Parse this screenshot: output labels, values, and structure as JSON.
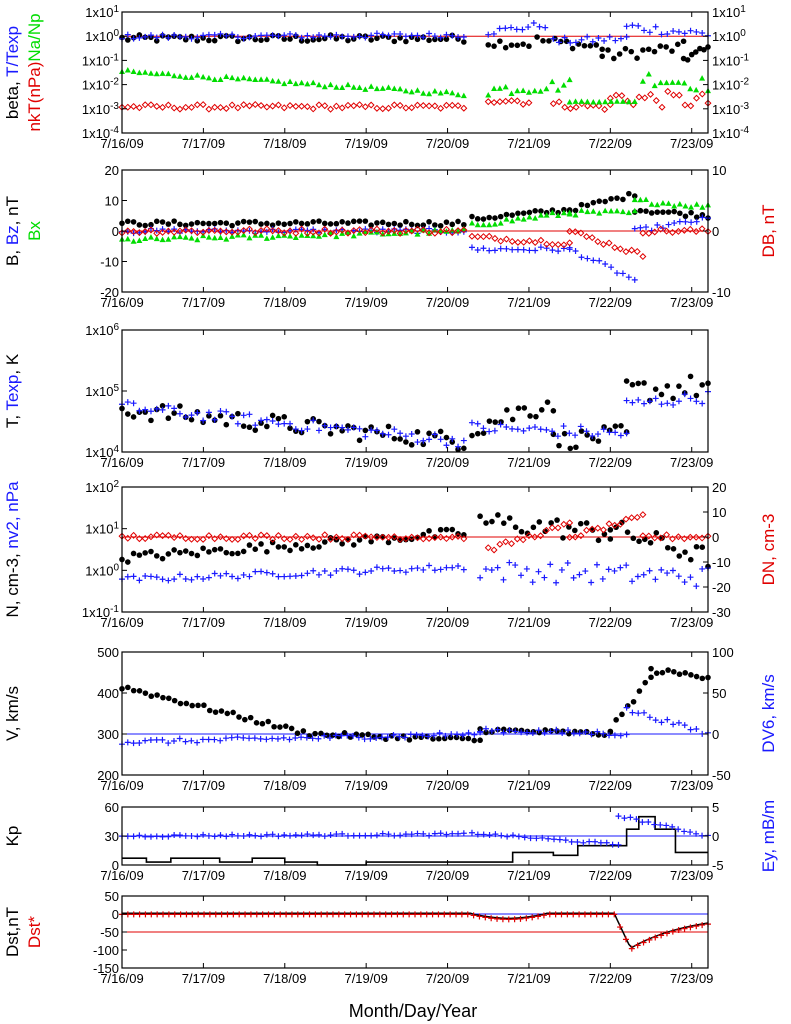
{
  "colors": {
    "black": "#000000",
    "blue": "#1a1aff",
    "red": "#e00000",
    "green": "#00dd00"
  },
  "x_ticks": [
    "7/16/09",
    "7/17/09",
    "7/18/09",
    "7/19/09",
    "7/20/09",
    "7/21/09",
    "7/22/09",
    "7/23/09"
  ],
  "x_title": "Month/Day/Year",
  "chart_data": [
    {
      "type": "scatter",
      "panel": "beta",
      "y_scale": "log",
      "ylim": [
        0.0001,
        10
      ],
      "left_ticks": [
        "1x10-4",
        "1x10-3",
        "1x10-2",
        "1x10-1",
        "1x100",
        "1x101"
      ],
      "right_ticks": [
        "1x10-4",
        "1x10-3",
        "1x10-2",
        "1x10-1",
        "1x100",
        "1x101"
      ],
      "labels": [
        {
          "text": "beta, ",
          "color": "#000000"
        },
        {
          "text": "T/Texp",
          "color": "#1a1aff"
        },
        {
          "text": "nkT(nPa)",
          "color": "#e00000"
        },
        {
          "text": "Na/Np",
          "color": "#00dd00"
        }
      ],
      "reference_line": 1,
      "series": [
        {
          "color": "#000000",
          "marker": "dot",
          "segments": [
            {
              "x": [
                0,
                4.2
              ],
              "y": [
                0.8,
                0.8
              ],
              "noise": 0.15
            },
            {
              "x": [
                4.5,
                5.0
              ],
              "y": [
                0.55,
                0.5
              ],
              "noise": 0.2
            },
            {
              "x": [
                5.1,
                5.9
              ],
              "y": [
                0.7,
                0.35
              ],
              "noise": 0.2
            },
            {
              "x": [
                5.9,
                6.9
              ],
              "y": [
                0.15,
                0.35
              ],
              "noise": 0.25
            },
            {
              "x": [
                6.9,
                7.2
              ],
              "y": [
                0.12,
                0.3
              ],
              "noise": 0.2
            }
          ]
        },
        {
          "color": "#1a1aff",
          "marker": "plus",
          "segments": [
            {
              "x": [
                0,
                4.2
              ],
              "y": [
                0.95,
                1.1
              ],
              "noise": 0.1
            },
            {
              "x": [
                4.5,
                5.2
              ],
              "y": [
                1.5,
                3.0
              ],
              "noise": 0.15
            },
            {
              "x": [
                5.3,
                6.2
              ],
              "y": [
                0.6,
                0.8
              ],
              "noise": 0.15
            },
            {
              "x": [
                6.2,
                7.2
              ],
              "y": [
                2.5,
                1.2
              ],
              "noise": 0.2
            }
          ]
        },
        {
          "color": "#e00000",
          "marker": "diamond",
          "segments": [
            {
              "x": [
                0,
                4.2
              ],
              "y": [
                0.0012,
                0.0012
              ],
              "noise": 0.1
            },
            {
              "x": [
                4.5,
                5.0
              ],
              "y": [
                0.0025,
                0.002
              ],
              "noise": 0.15
            },
            {
              "x": [
                5.3,
                6.0
              ],
              "y": [
                0.0015,
                0.0012
              ],
              "noise": 0.15
            },
            {
              "x": [
                6.0,
                7.2
              ],
              "y": [
                0.003,
                0.002
              ],
              "noise": 0.35
            }
          ]
        },
        {
          "color": "#00dd00",
          "marker": "triangle",
          "segments": [
            {
              "x": [
                0,
                4.2
              ],
              "y": [
                0.035,
                0.004
              ],
              "noise": 0.08
            },
            {
              "x": [
                4.5,
                5.5
              ],
              "y": [
                0.006,
                0.01
              ],
              "noise": 0.25
            },
            {
              "x": [
                5.5,
                6.3
              ],
              "y": [
                0.002,
                0.002
              ],
              "noise": 0.02
            },
            {
              "x": [
                6.4,
                7.2
              ],
              "y": [
                0.02,
                0.01
              ],
              "noise": 0.3
            }
          ]
        }
      ]
    },
    {
      "type": "scatter",
      "panel": "B",
      "y_scale": "linear",
      "ylim": [
        -20,
        20
      ],
      "y2lim": [
        -10,
        10
      ],
      "left_ticks": [
        "-20",
        "-10",
        "0",
        "10",
        "20"
      ],
      "right_ticks": [
        "-10",
        "0",
        "10"
      ],
      "labels": [
        {
          "text": "B, ",
          "color": "#000000"
        },
        {
          "text": "Bz",
          "color": "#1a1aff"
        },
        {
          "text": ", nT",
          "color": "#000000"
        },
        {
          "text": "Bx",
          "color": "#00dd00"
        },
        {
          "text": "DB, nT",
          "color": "#e00000"
        }
      ],
      "reference_line": 0,
      "series": [
        {
          "color": "#000000",
          "marker": "dot",
          "segments": [
            {
              "x": [
                0,
                4.2
              ],
              "y": [
                2.5,
                2.5
              ],
              "noise": 0.15
            },
            {
              "x": [
                4.3,
                5.5
              ],
              "y": [
                4,
                7
              ],
              "noise": 0.1
            },
            {
              "x": [
                5.5,
                6.3
              ],
              "y": [
                7,
                12
              ],
              "noise": 0.15
            },
            {
              "x": [
                6.3,
                7.2
              ],
              "y": [
                7,
                5
              ],
              "noise": 0.1
            }
          ]
        },
        {
          "color": "#1a1aff",
          "marker": "plus",
          "segments": [
            {
              "x": [
                0,
                4.2
              ],
              "y": [
                0,
                0
              ],
              "noise": 0
            },
            {
              "x": [
                4.3,
                5.5
              ],
              "y": [
                -3,
                -3
              ],
              "noise": 0
            },
            {
              "x": [
                5.5,
                6.3
              ],
              "y": [
                -3,
                -8
              ],
              "noise": 0
            },
            {
              "x": [
                6.3,
                7.2
              ],
              "y": [
                0,
                2
              ],
              "noise": 0
            }
          ]
        },
        {
          "color": "#00dd00",
          "marker": "triangle",
          "segments": [
            {
              "x": [
                0,
                4.2
              ],
              "y": [
                -1.5,
                0
              ],
              "noise": 0
            },
            {
              "x": [
                4.3,
                5.5
              ],
              "y": [
                1,
                3
              ],
              "noise": 0
            },
            {
              "x": [
                5.5,
                6.3
              ],
              "y": [
                3,
                3
              ],
              "noise": 0
            },
            {
              "x": [
                6.3,
                7.2
              ],
              "y": [
                5,
                4
              ],
              "noise": 0
            }
          ]
        },
        {
          "color": "#e00000",
          "marker": "diamond",
          "segments": [
            {
              "x": [
                0,
                4.2
              ],
              "y": [
                0,
                0
              ],
              "noise": 0
            },
            {
              "x": [
                4.3,
                5.5
              ],
              "y": [
                -1,
                -2
              ],
              "noise": 0
            },
            {
              "x": [
                5.5,
                6.4
              ],
              "y": [
                0,
                -4
              ],
              "noise": 0
            },
            {
              "x": [
                6.4,
                7.2
              ],
              "y": [
                0,
                0
              ],
              "noise": 0
            }
          ]
        }
      ]
    },
    {
      "type": "scatter",
      "panel": "T",
      "y_scale": "log",
      "ylim": [
        10000,
        1000000
      ],
      "left_ticks": [
        "1x104",
        "1x105",
        "1x106"
      ],
      "labels": [
        {
          "text": "T, ",
          "color": "#000000"
        },
        {
          "text": "Texp",
          "color": "#1a1aff"
        },
        {
          "text": ", K",
          "color": "#000000"
        }
      ],
      "series": [
        {
          "color": "#000000",
          "marker": "dot",
          "segments": [
            {
              "x": [
                0,
                4.2
              ],
              "y": [
                50000,
                15000
              ],
              "noise": 0.15
            },
            {
              "x": [
                4.3,
                5.3
              ],
              "y": [
                25000,
                70000
              ],
              "noise": 0.2
            },
            {
              "x": [
                5.3,
                6.2
              ],
              "y": [
                15000,
                20000
              ],
              "noise": 0.15
            },
            {
              "x": [
                6.2,
                7.2
              ],
              "y": [
                100000,
                120000
              ],
              "noise": 0.2
            }
          ]
        },
        {
          "color": "#1a1aff",
          "marker": "plus",
          "segments": [
            {
              "x": [
                0,
                4.2
              ],
              "y": [
                55000,
                15000
              ],
              "noise": 0.1
            },
            {
              "x": [
                4.3,
                6.2
              ],
              "y": [
                25000,
                20000
              ],
              "noise": 0.1
            },
            {
              "x": [
                6.2,
                7.2
              ],
              "y": [
                60000,
                80000
              ],
              "noise": 0.1
            }
          ]
        }
      ]
    },
    {
      "type": "scatter",
      "panel": "N",
      "y_scale": "log",
      "ylim": [
        0.1,
        100
      ],
      "y2lim": [
        -30,
        20
      ],
      "left_ticks": [
        "1x10-1",
        "1x100",
        "1x101",
        "1x102"
      ],
      "right_ticks": [
        "-30",
        "-20",
        "-10",
        "0",
        "10",
        "20"
      ],
      "labels": [
        {
          "text": "N, cm-3, ",
          "color": "#000000"
        },
        {
          "text": "nv2, nPa",
          "color": "#1a1aff"
        },
        {
          "text": "DN, cm-3",
          "color": "#e00000"
        }
      ],
      "reference_line": 0,
      "series": [
        {
          "color": "#000000",
          "marker": "dot",
          "segments": [
            {
              "x": [
                0,
                4.2
              ],
              "y": [
                2,
                8
              ],
              "noise": 0.12
            },
            {
              "x": [
                4.4,
                6.0
              ],
              "y": [
                15,
                8
              ],
              "noise": 0.25
            },
            {
              "x": [
                6.0,
                7.2
              ],
              "y": [
                10,
                2
              ],
              "noise": 0.25
            }
          ]
        },
        {
          "color": "#1a1aff",
          "marker": "plus",
          "segments": [
            {
              "x": [
                0,
                4.2
              ],
              "y": [
                0.6,
                1.2
              ],
              "noise": 0.08
            },
            {
              "x": [
                4.4,
                7.2
              ],
              "y": [
                1.0,
                0.7
              ],
              "noise": 0.25
            }
          ]
        },
        {
          "color": "#e00000",
          "marker": "diamond",
          "segments": [
            {
              "x": [
                0,
                4.2
              ],
              "y": [
                0,
                0
              ],
              "noise": 0
            },
            {
              "x": [
                4.5,
                5.5
              ],
              "y": [
                -5,
                5
              ],
              "noise": 0
            },
            {
              "x": [
                5.5,
                6.4
              ],
              "y": [
                0,
                8
              ],
              "noise": 0
            },
            {
              "x": [
                6.4,
                7.2
              ],
              "y": [
                0,
                0
              ],
              "noise": 0
            }
          ]
        }
      ]
    },
    {
      "type": "scatter",
      "panel": "V",
      "y_scale": "linear",
      "ylim": [
        200,
        500
      ],
      "y2lim": [
        -50,
        100
      ],
      "left_ticks": [
        "200",
        "300",
        "400",
        "500"
      ],
      "right_ticks": [
        "-50",
        "0",
        "50",
        "100"
      ],
      "labels": [
        {
          "text": "V, km/s",
          "color": "#000000"
        },
        {
          "text": "DV6, km/s",
          "color": "#1a1aff"
        }
      ],
      "reference_line": 0,
      "series": [
        {
          "color": "#000000",
          "marker": "dot",
          "segments": [
            {
              "x": [
                0,
                2.3
              ],
              "y": [
                415,
                300
              ],
              "noise": 0
            },
            {
              "x": [
                2.3,
                4.4
              ],
              "y": [
                300,
                285
              ],
              "noise": 0
            },
            {
              "x": [
                4.4,
                6.0
              ],
              "y": [
                310,
                300
              ],
              "noise": 0
            },
            {
              "x": [
                6.0,
                6.5
              ],
              "y": [
                310,
                440
              ],
              "noise": 0
            },
            {
              "x": [
                6.5,
                7.2
              ],
              "y": [
                455,
                440
              ],
              "noise": 0
            }
          ]
        },
        {
          "color": "#1a1aff",
          "marker": "plus",
          "segments": [
            {
              "x": [
                0,
                4.4
              ],
              "y": [
                -10,
                0
              ],
              "noise": 0
            },
            {
              "x": [
                4.4,
                6.2
              ],
              "y": [
                5,
                0
              ],
              "noise": 0
            },
            {
              "x": [
                6.2,
                7.2
              ],
              "y": [
                30,
                0
              ],
              "noise": 0
            }
          ]
        }
      ]
    },
    {
      "type": "line",
      "panel": "Kp",
      "y_scale": "linear",
      "ylim": [
        0,
        60
      ],
      "y2lim": [
        -5,
        5
      ],
      "left_ticks": [
        "0",
        "30",
        "60"
      ],
      "right_ticks": [
        "-5",
        "0",
        "5"
      ],
      "labels": [
        {
          "text": "Kp",
          "color": "#000000"
        },
        {
          "text": "Ey, mB/m",
          "color": "#1a1aff"
        }
      ],
      "reference_line": 0,
      "kp_steps": {
        "x": [
          0,
          0.3,
          0.6,
          1.2,
          1.6,
          2.0,
          2.4,
          3.0,
          3.5,
          4.1,
          4.4,
          4.8,
          5.0,
          5.3,
          5.6,
          6.1,
          6.2,
          6.35,
          6.55,
          6.8,
          7.2
        ],
        "y": [
          7,
          3,
          7,
          3,
          7,
          3,
          0,
          3,
          3,
          3,
          3,
          13,
          13,
          10,
          20,
          20,
          37,
          50,
          37,
          13,
          13
        ]
      },
      "ey_series": {
        "color": "#1a1aff",
        "marker": "plus",
        "segments": [
          {
            "x": [
              0,
              4.2
            ],
            "y": [
              0,
              0.3
            ],
            "noise": 0
          },
          {
            "x": [
              4.3,
              6.1
            ],
            "y": [
              0.5,
              -1.5
            ],
            "noise": 0
          },
          {
            "x": [
              6.1,
              7.2
            ],
            "y": [
              3.5,
              0
            ],
            "noise": 0
          }
        ]
      }
    },
    {
      "type": "line",
      "panel": "Dst",
      "y_scale": "linear",
      "ylim": [
        -150,
        50
      ],
      "left_ticks": [
        "-150",
        "-100",
        "-50",
        "0",
        "50"
      ],
      "labels": [
        {
          "text": "Dst,nT",
          "color": "#000000"
        },
        {
          "text": "Dst*",
          "color": "#e00000"
        }
      ],
      "reference_lines": [
        0,
        -50
      ]
    }
  ]
}
